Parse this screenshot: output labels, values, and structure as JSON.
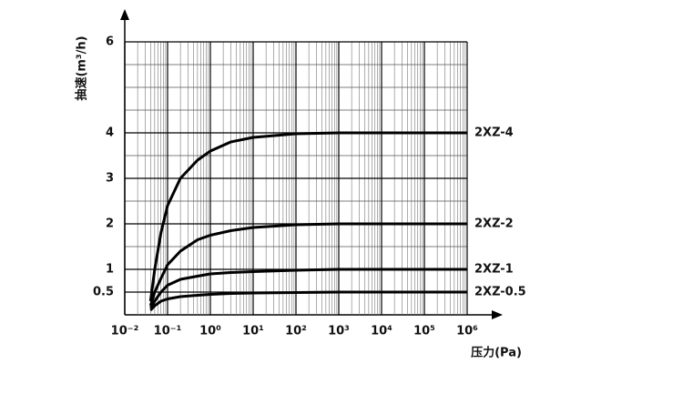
{
  "chart_data": {
    "type": "line",
    "y_label": "抽速(m³/h)",
    "x_label": "压力(Pa)",
    "x": [
      0.04,
      0.05,
      0.07,
      0.1,
      0.2,
      0.5,
      1,
      3,
      10,
      100,
      1000,
      10000,
      1000000
    ],
    "series": [
      {
        "name": "2XZ-4",
        "color": "#000000",
        "values": [
          0.3,
          1.0,
          1.8,
          2.4,
          3.0,
          3.4,
          3.6,
          3.8,
          3.9,
          3.98,
          4.0,
          4.0,
          4.0
        ]
      },
      {
        "name": "2XZ-2",
        "color": "#000000",
        "values": [
          0.2,
          0.5,
          0.8,
          1.1,
          1.4,
          1.65,
          1.75,
          1.85,
          1.92,
          1.98,
          2.0,
          2.0,
          2.0
        ]
      },
      {
        "name": "2XZ-1",
        "color": "#000000",
        "values": [
          0.15,
          0.3,
          0.5,
          0.65,
          0.78,
          0.85,
          0.9,
          0.93,
          0.95,
          0.98,
          1.0,
          1.0,
          1.0
        ]
      },
      {
        "name": "2XZ-0.5",
        "color": "#000000",
        "values": [
          0.1,
          0.2,
          0.3,
          0.35,
          0.4,
          0.43,
          0.45,
          0.47,
          0.48,
          0.49,
          0.5,
          0.5,
          0.5
        ]
      }
    ],
    "xscale": "log",
    "xlim": [
      0.01,
      1000000
    ],
    "xticks": [
      {
        "value": 0.01,
        "label": "10⁻²"
      },
      {
        "value": 0.1,
        "label": "10⁻¹"
      },
      {
        "value": 1,
        "label": "10⁰"
      },
      {
        "value": 10,
        "label": "10¹"
      },
      {
        "value": 100,
        "label": "10²"
      },
      {
        "value": 1000,
        "label": "10³"
      },
      {
        "value": 10000,
        "label": "10⁴"
      },
      {
        "value": 100000,
        "label": "10⁵"
      },
      {
        "value": 1000000,
        "label": "10⁶"
      }
    ],
    "ylim": [
      0,
      6
    ],
    "yticks": [
      0.5,
      1,
      2,
      3,
      4,
      6
    ],
    "grid": true
  }
}
